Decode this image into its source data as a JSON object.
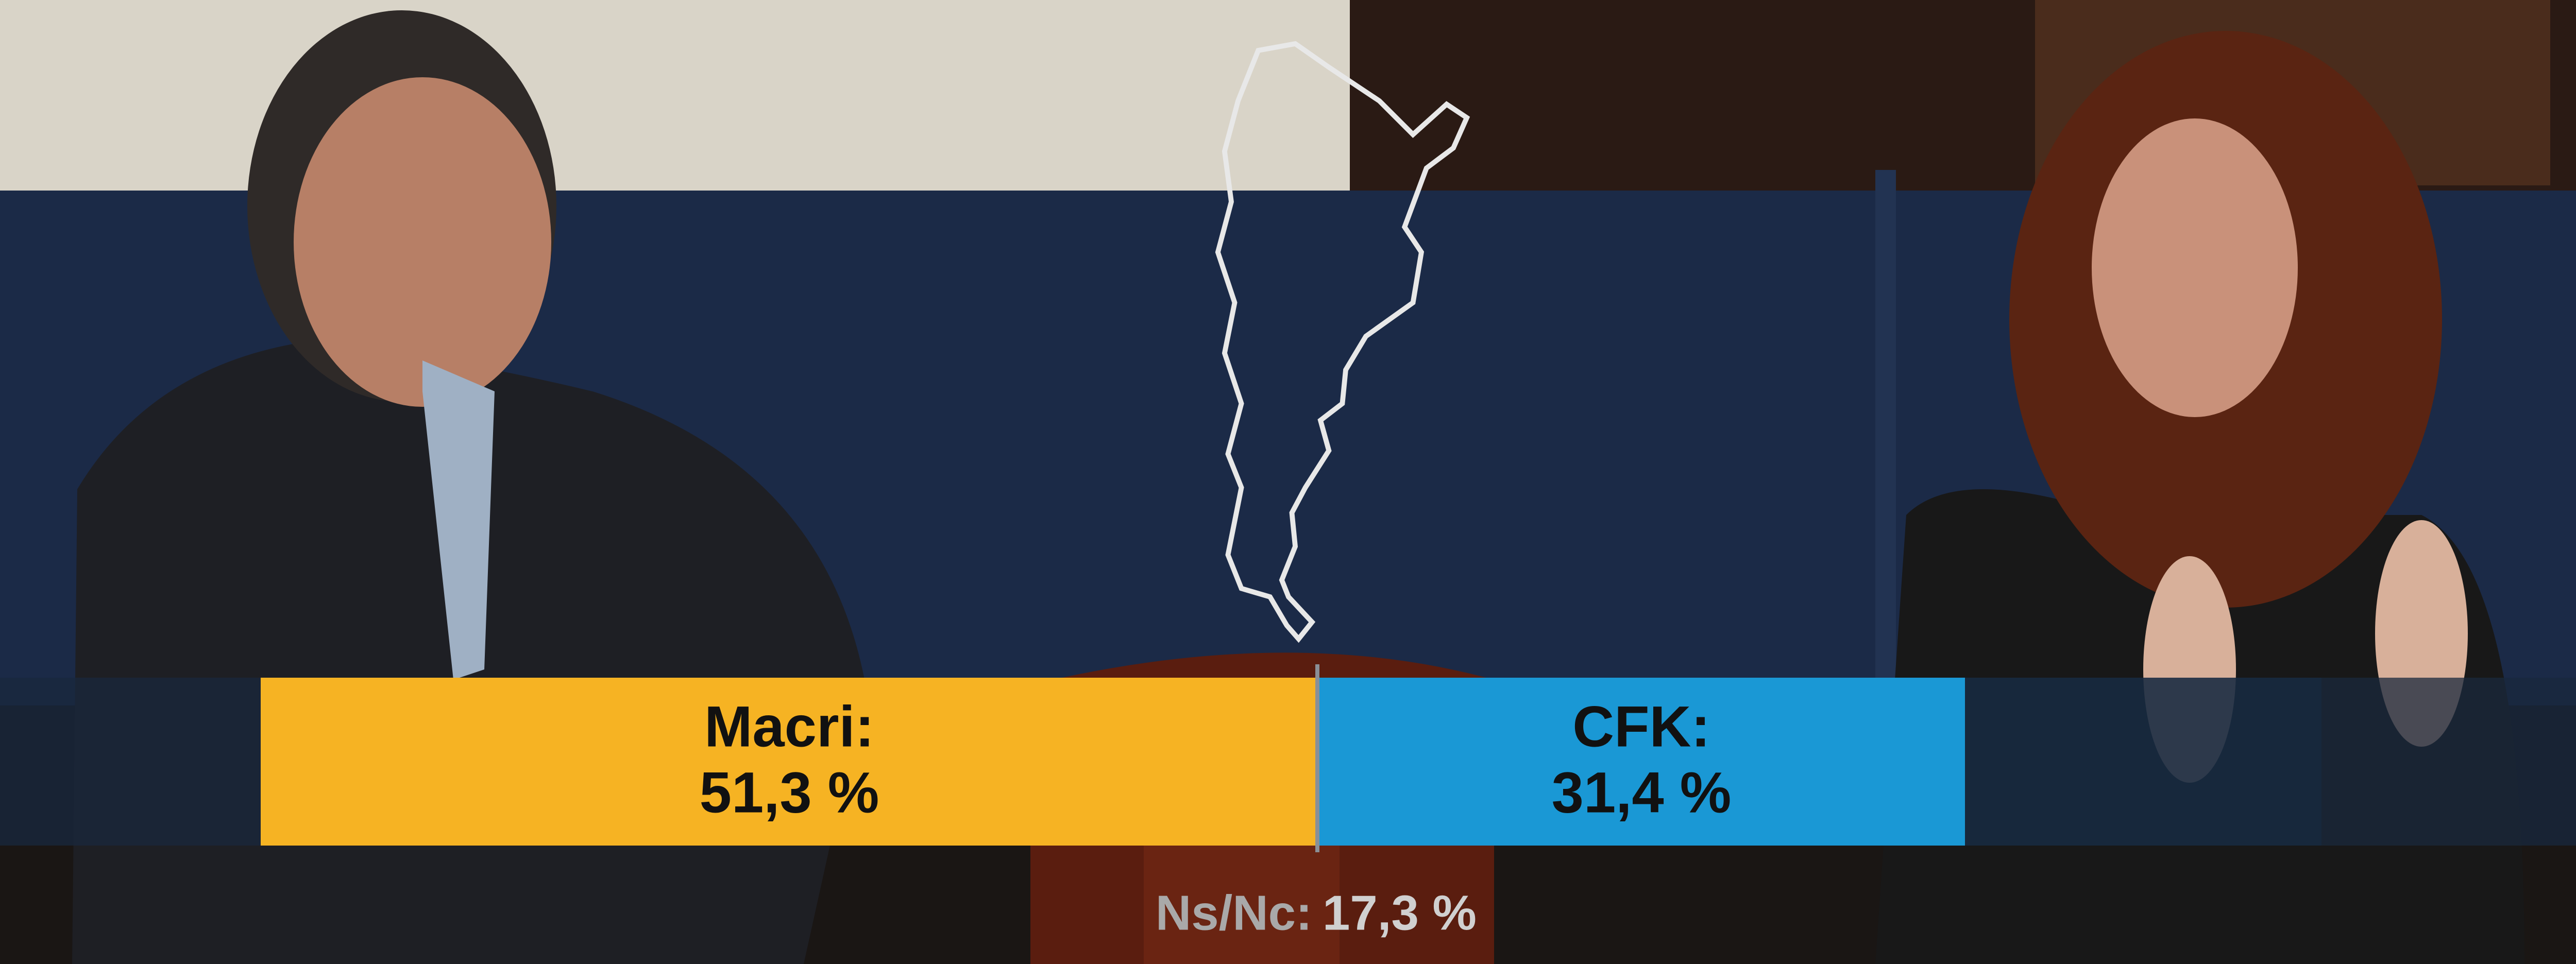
{
  "chart_data": {
    "type": "stacked-bar",
    "xlim": [
      0,
      100
    ],
    "series": [
      {
        "name": "Macri:",
        "color": "#f6b323",
        "values": [
          51.3
        ],
        "value_labels": [
          "51,3 %"
        ]
      },
      {
        "name": "CFK:",
        "color": "#1a98d5",
        "values": [
          31.4
        ],
        "value_labels": [
          "31,4 %"
        ]
      },
      {
        "name": "Ns/Nc:",
        "color": "#152b44",
        "values": [
          17.3
        ],
        "value_labels": [
          "17,3 %"
        ]
      }
    ]
  }
}
